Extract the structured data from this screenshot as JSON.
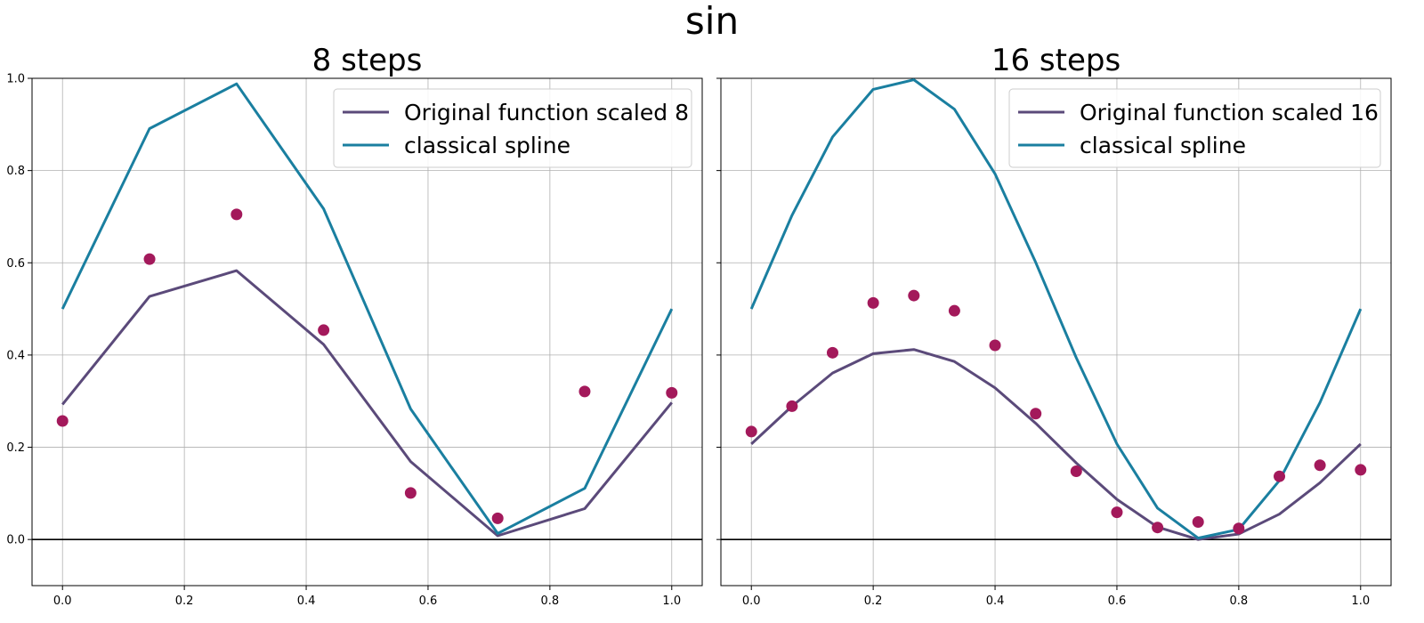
{
  "suptitle": "sin",
  "colors": {
    "original": "#5b4a7a",
    "spline": "#1a7fa0",
    "points": "#a3195b",
    "grid": "#b0b0b0",
    "zero_line": "#000000"
  },
  "chart_data": [
    {
      "type": "line",
      "title": "8 steps",
      "xlim": [
        -0.05,
        1.05
      ],
      "ylim": [
        -0.1,
        1.0
      ],
      "xticks": [
        "0.0",
        "0.2",
        "0.4",
        "0.6",
        "0.8",
        "1.0"
      ],
      "yticks": [
        "0.0",
        "0.2",
        "0.4",
        "0.6",
        "0.8",
        "1.0"
      ],
      "grid": true,
      "legend_position": "top-right",
      "series": [
        {
          "name": "Original function scaled 8",
          "kind": "line",
          "x": [
            0.0,
            0.1429,
            0.2857,
            0.4286,
            0.5714,
            0.7143,
            0.8571,
            1.0
          ],
          "y": [
            0.293,
            0.527,
            0.583,
            0.423,
            0.169,
            0.008,
            0.067,
            0.297
          ]
        },
        {
          "name": "classical spline",
          "kind": "line",
          "x": [
            0.0,
            0.1429,
            0.2857,
            0.4286,
            0.5714,
            0.7143,
            0.8571,
            1.0
          ],
          "y": [
            0.5,
            0.891,
            0.988,
            0.717,
            0.283,
            0.013,
            0.111,
            0.5
          ]
        },
        {
          "kind": "scatter",
          "x": [
            0.0,
            0.1429,
            0.2857,
            0.4286,
            0.5714,
            0.7143,
            0.8571,
            1.0
          ],
          "y": [
            0.257,
            0.608,
            0.705,
            0.454,
            0.101,
            0.046,
            0.321,
            0.318
          ]
        }
      ]
    },
    {
      "type": "line",
      "title": "16 steps",
      "xlim": [
        -0.05,
        1.05
      ],
      "ylim": [
        -0.1,
        1.0
      ],
      "xticks": [
        "0.0",
        "0.2",
        "0.4",
        "0.6",
        "0.8",
        "1.0"
      ],
      "yticks": [
        "0.0",
        "0.2",
        "0.4",
        "0.6",
        "0.8",
        "1.0"
      ],
      "grid": true,
      "legend_position": "top-right",
      "series": [
        {
          "name": "Original function scaled 16",
          "kind": "line",
          "x": [
            0.0,
            0.0667,
            0.1333,
            0.2,
            0.2667,
            0.3333,
            0.4,
            0.4667,
            0.5333,
            0.6,
            0.6667,
            0.7333,
            0.8,
            0.8667,
            0.9333,
            1.0
          ],
          "y": [
            0.207,
            0.289,
            0.361,
            0.403,
            0.412,
            0.386,
            0.329,
            0.252,
            0.166,
            0.087,
            0.027,
            0.0,
            0.012,
            0.055,
            0.123,
            0.207
          ]
        },
        {
          "name": "classical spline",
          "kind": "line",
          "x": [
            0.0,
            0.0667,
            0.1333,
            0.2,
            0.2667,
            0.3333,
            0.4,
            0.4667,
            0.5333,
            0.6,
            0.6667,
            0.7333,
            0.8,
            0.8667,
            0.9333,
            1.0
          ],
          "y": [
            0.5,
            0.703,
            0.873,
            0.976,
            0.997,
            0.933,
            0.793,
            0.601,
            0.394,
            0.207,
            0.068,
            0.003,
            0.022,
            0.128,
            0.297,
            0.5
          ]
        },
        {
          "kind": "scatter",
          "x": [
            0.0,
            0.0667,
            0.1333,
            0.2,
            0.2667,
            0.3333,
            0.4,
            0.4667,
            0.5333,
            0.6,
            0.6667,
            0.7333,
            0.8,
            0.8667,
            0.9333,
            1.0
          ],
          "y": [
            0.234,
            0.289,
            0.405,
            0.513,
            0.529,
            0.496,
            0.421,
            0.273,
            0.148,
            0.059,
            0.026,
            0.038,
            0.024,
            0.137,
            0.161,
            0.151
          ]
        }
      ]
    }
  ]
}
